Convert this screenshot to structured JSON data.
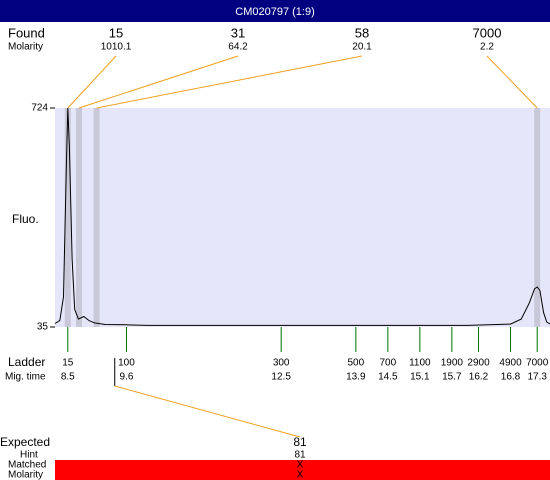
{
  "title": "CM020797 (1:9)",
  "found": {
    "label": "Found",
    "sublabel": "Molarity",
    "peaks": [
      {
        "size": "15",
        "molarity": "1010.1",
        "time": 8.5
      },
      {
        "size": "31",
        "molarity": "64.2",
        "time": 8.71
      },
      {
        "size": "58",
        "molarity": "20.1",
        "time": 9.04
      },
      {
        "size": "7000",
        "molarity": "2.2",
        "time": 17.3
      }
    ]
  },
  "plot": {
    "y_label": "Fluo.",
    "xlim": [
      8.26,
      17.54
    ],
    "ylim": [
      35,
      724
    ],
    "yticks": [
      35,
      724
    ],
    "trace": {
      "x": [
        8.26,
        8.35,
        8.42,
        8.47,
        8.5,
        8.53,
        8.58,
        8.63,
        8.7,
        8.8,
        8.9,
        9.0,
        9.2,
        9.6,
        10,
        12,
        14,
        16,
        16.8,
        17.0,
        17.15,
        17.25,
        17.3,
        17.35,
        17.42,
        17.48,
        17.54
      ],
      "values": [
        46,
        55,
        130,
        520,
        724,
        600,
        250,
        90,
        60,
        68,
        55,
        48,
        43,
        42,
        40,
        40,
        40,
        40,
        44,
        60,
        110,
        155,
        161,
        150,
        80,
        50,
        45
      ]
    }
  },
  "ladder": {
    "label": "Ladder",
    "sublabel": "Mig. time",
    "peaks": [
      {
        "size": "15",
        "time": 8.5
      },
      {
        "size": "100",
        "time": 9.6
      },
      {
        "size": "300",
        "time": 12.5
      },
      {
        "size": "500",
        "time": 13.9
      },
      {
        "size": "700",
        "time": 14.5
      },
      {
        "size": "1100",
        "time": 15.1
      },
      {
        "size": "1900",
        "time": 15.7
      },
      {
        "size": "2900",
        "time": 16.2
      },
      {
        "size": "4900",
        "time": 16.8
      },
      {
        "size": "7000",
        "time": 17.3
      }
    ]
  },
  "expected": {
    "label": "Expected",
    "value": "81",
    "time": 9.38,
    "hint_label": "Hint",
    "hint": "81",
    "matched_label": "Matched",
    "matched": "X",
    "molarity_label": "Molarity",
    "molarity": "X"
  }
}
